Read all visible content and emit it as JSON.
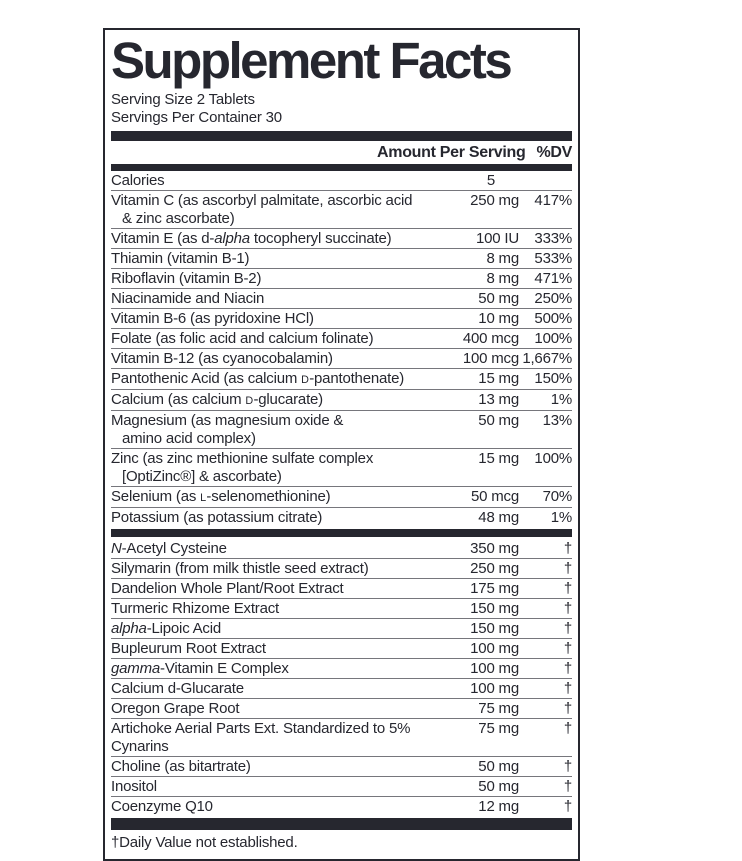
{
  "title": "Supplement Facts",
  "serving": {
    "size": "Serving Size 2 Tablets",
    "per_container": "Servings Per Container 30"
  },
  "columns": {
    "amount": "Amount Per Serving",
    "dv": "%DV"
  },
  "sections": [
    {
      "rows": [
        {
          "name": [
            {
              "t": "Calories"
            }
          ],
          "amount": "5",
          "dv": ""
        },
        {
          "name": [
            {
              "t": "Vitamin C (as ascorbyl palmitate, ascorbic acid"
            }
          ],
          "name2": "& zinc ascorbate)",
          "amount": "250 mg",
          "dv": "417%"
        },
        {
          "name": [
            {
              "t": "Vitamin E (as d-"
            },
            {
              "t": "alpha",
              "s": "i"
            },
            {
              "t": " tocopheryl succinate)"
            }
          ],
          "amount": "100 IU",
          "dv": "333%"
        },
        {
          "name": [
            {
              "t": "Thiamin (vitamin B-1)"
            }
          ],
          "amount": "8 mg",
          "dv": "533%"
        },
        {
          "name": [
            {
              "t": "Riboflavin (vitamin B-2)"
            }
          ],
          "amount": "8 mg",
          "dv": "471%"
        },
        {
          "name": [
            {
              "t": "Niacinamide and Niacin"
            }
          ],
          "amount": "50 mg",
          "dv": "250%"
        },
        {
          "name": [
            {
              "t": "Vitamin B-6 (as pyridoxine HCl)"
            }
          ],
          "amount": "10 mg",
          "dv": "500%"
        },
        {
          "name": [
            {
              "t": "Folate (as folic acid and calcium folinate)"
            }
          ],
          "amount": "400 mcg",
          "dv": "100%"
        },
        {
          "name": [
            {
              "t": "Vitamin B-12 (as cyanocobalamin)"
            }
          ],
          "amount": "100 mcg",
          "dv": "1,667%"
        },
        {
          "name": [
            {
              "t": "Pantothenic Acid (as calcium "
            },
            {
              "t": "d",
              "s": "sc"
            },
            {
              "t": "-pantothenate)"
            }
          ],
          "amount": "15 mg",
          "dv": "150%"
        },
        {
          "name": [
            {
              "t": "Calcium (as calcium "
            },
            {
              "t": "d",
              "s": "sc"
            },
            {
              "t": "-glucarate)"
            }
          ],
          "amount": "13 mg",
          "dv": "1%"
        },
        {
          "name": [
            {
              "t": "Magnesium (as magnesium oxide &"
            }
          ],
          "name2": "amino acid complex)",
          "amount": "50 mg",
          "dv": "13%"
        },
        {
          "name": [
            {
              "t": "Zinc (as zinc methionine sulfate complex"
            }
          ],
          "name2": "[OptiZinc®] & ascorbate)",
          "amount": "15 mg",
          "dv": "100%"
        },
        {
          "name": [
            {
              "t": "Selenium (as "
            },
            {
              "t": "l",
              "s": "sc"
            },
            {
              "t": "-selenomethionine)"
            }
          ],
          "amount": "50 mcg",
          "dv": "70%"
        },
        {
          "name": [
            {
              "t": "Potassium (as potassium citrate)"
            }
          ],
          "amount": "48 mg",
          "dv": "1%"
        }
      ]
    },
    {
      "rows": [
        {
          "name": [
            {
              "t": "N",
              "s": "i"
            },
            {
              "t": "-Acetyl Cysteine"
            }
          ],
          "amount": "350 mg",
          "dv": "†"
        },
        {
          "name": [
            {
              "t": "Silymarin (from milk thistle seed extract)"
            }
          ],
          "amount": "250 mg",
          "dv": "†"
        },
        {
          "name": [
            {
              "t": "Dandelion Whole Plant/Root Extract"
            }
          ],
          "amount": "175 mg",
          "dv": "†"
        },
        {
          "name": [
            {
              "t": "Turmeric Rhizome Extract"
            }
          ],
          "amount": "150 mg",
          "dv": "†"
        },
        {
          "name": [
            {
              "t": "alpha",
              "s": "i"
            },
            {
              "t": "-Lipoic Acid"
            }
          ],
          "amount": "150 mg",
          "dv": "†"
        },
        {
          "name": [
            {
              "t": "Bupleurum Root Extract"
            }
          ],
          "amount": "100 mg",
          "dv": "†"
        },
        {
          "name": [
            {
              "t": "gamma",
              "s": "i"
            },
            {
              "t": "-Vitamin E Complex"
            }
          ],
          "amount": "100 mg",
          "dv": "†"
        },
        {
          "name": [
            {
              "t": "Calcium d-Glucarate"
            }
          ],
          "amount": "100 mg",
          "dv": "†"
        },
        {
          "name": [
            {
              "t": "Oregon Grape Root"
            }
          ],
          "amount": "75 mg",
          "dv": "†"
        },
        {
          "name": [
            {
              "t": "Artichoke Aerial Parts Ext. Standardized to 5% Cynarins"
            }
          ],
          "amount": "75 mg",
          "dv": "†"
        },
        {
          "name": [
            {
              "t": "Choline (as bitartrate)"
            }
          ],
          "amount": "50 mg",
          "dv": "†"
        },
        {
          "name": [
            {
              "t": "Inositol"
            }
          ],
          "amount": "50 mg",
          "dv": "†"
        },
        {
          "name": [
            {
              "t": "Coenzyme Q10"
            }
          ],
          "amount": "12 mg",
          "dv": "†"
        }
      ]
    }
  ],
  "footnote": "†Daily Value not established.",
  "colors": {
    "ink": "#26272f",
    "hairline": "#76767c",
    "background": "#ffffff"
  }
}
